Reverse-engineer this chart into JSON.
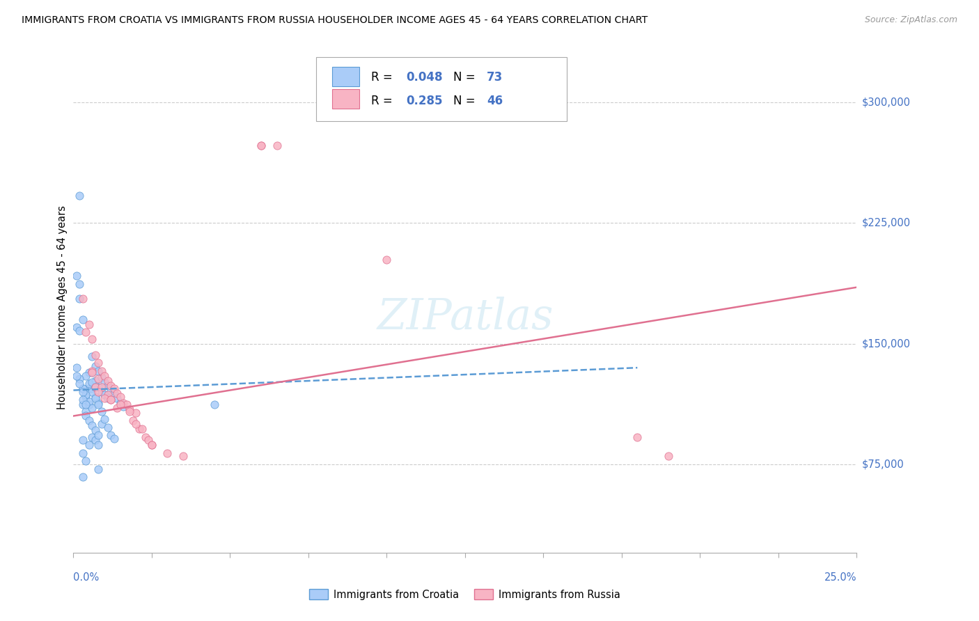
{
  "title": "IMMIGRANTS FROM CROATIA VS IMMIGRANTS FROM RUSSIA HOUSEHOLDER INCOME AGES 45 - 64 YEARS CORRELATION CHART",
  "source": "Source: ZipAtlas.com",
  "ylabel": "Householder Income Ages 45 - 64 years",
  "yticks": [
    75000,
    150000,
    225000,
    300000
  ],
  "ytick_labels": [
    "$75,000",
    "$150,000",
    "$225,000",
    "$300,000"
  ],
  "xmin": 0.0,
  "xmax": 0.25,
  "ymin": 20000,
  "ymax": 325000,
  "croatia_fill": "#aaccf8",
  "croatia_edge": "#5b9bd5",
  "russia_fill": "#f8b4c4",
  "russia_edge": "#e07090",
  "blue_text": "#4472c4",
  "grid_color": "#cccccc",
  "croatia_R": 0.048,
  "croatia_N": 73,
  "russia_R": 0.285,
  "russia_N": 46,
  "croatia_trend_x0": 0.0,
  "croatia_trend_y0": 121000,
  "croatia_trend_x1": 0.18,
  "croatia_trend_y1": 135000,
  "russia_trend_x0": 0.0,
  "russia_trend_y0": 105000,
  "russia_trend_x1": 0.25,
  "russia_trend_y1": 185000,
  "croatia_x": [
    0.001,
    0.002,
    0.002,
    0.003,
    0.003,
    0.004,
    0.004,
    0.005,
    0.005,
    0.005,
    0.006,
    0.006,
    0.006,
    0.007,
    0.007,
    0.007,
    0.008,
    0.008,
    0.008,
    0.009,
    0.009,
    0.01,
    0.01,
    0.011,
    0.011,
    0.012,
    0.013,
    0.014,
    0.015,
    0.016,
    0.001,
    0.002,
    0.003,
    0.004,
    0.005,
    0.006,
    0.007,
    0.008,
    0.003,
    0.004,
    0.005,
    0.006,
    0.001,
    0.002,
    0.003,
    0.004,
    0.005,
    0.006,
    0.006,
    0.007,
    0.007,
    0.008,
    0.009,
    0.009,
    0.01,
    0.011,
    0.012,
    0.013,
    0.001,
    0.002,
    0.003,
    0.003,
    0.004,
    0.004,
    0.005,
    0.006,
    0.007,
    0.008,
    0.002,
    0.003,
    0.045,
    0.003,
    0.008
  ],
  "croatia_y": [
    160000,
    178000,
    158000,
    122000,
    112000,
    117000,
    108000,
    132000,
    122000,
    112000,
    142000,
    132000,
    122000,
    136000,
    127000,
    117000,
    133000,
    123000,
    113000,
    129000,
    120000,
    126000,
    118000,
    124000,
    116000,
    121000,
    119000,
    116000,
    113000,
    111000,
    192000,
    187000,
    82000,
    77000,
    87000,
    92000,
    90000,
    87000,
    165000,
    130000,
    125000,
    120000,
    135000,
    128000,
    122000,
    118000,
    114000,
    110000,
    126000,
    123000,
    116000,
    112000,
    108000,
    100000,
    103000,
    98000,
    93000,
    91000,
    130000,
    125000,
    120000,
    115000,
    112000,
    105000,
    102000,
    99000,
    96000,
    93000,
    242000,
    90000,
    112000,
    67000,
    72000
  ],
  "russia_x": [
    0.003,
    0.005,
    0.006,
    0.006,
    0.007,
    0.007,
    0.008,
    0.008,
    0.009,
    0.009,
    0.01,
    0.011,
    0.011,
    0.012,
    0.012,
    0.013,
    0.014,
    0.014,
    0.015,
    0.016,
    0.017,
    0.018,
    0.019,
    0.02,
    0.021,
    0.022,
    0.023,
    0.024,
    0.025,
    0.03,
    0.004,
    0.006,
    0.008,
    0.01,
    0.012,
    0.015,
    0.018,
    0.02,
    0.025,
    0.035,
    0.06,
    0.06,
    0.065,
    0.1,
    0.18,
    0.19
  ],
  "russia_y": [
    178000,
    162000,
    153000,
    133000,
    143000,
    123000,
    138000,
    128000,
    133000,
    123000,
    130000,
    127000,
    118000,
    124000,
    115000,
    122000,
    119000,
    110000,
    117000,
    113000,
    112000,
    109000,
    102000,
    107000,
    97000,
    97000,
    92000,
    90000,
    87000,
    82000,
    157000,
    132000,
    120000,
    116000,
    115000,
    112000,
    108000,
    100000,
    87000,
    80000,
    273000,
    273000,
    273000,
    202000,
    92000,
    80000
  ]
}
